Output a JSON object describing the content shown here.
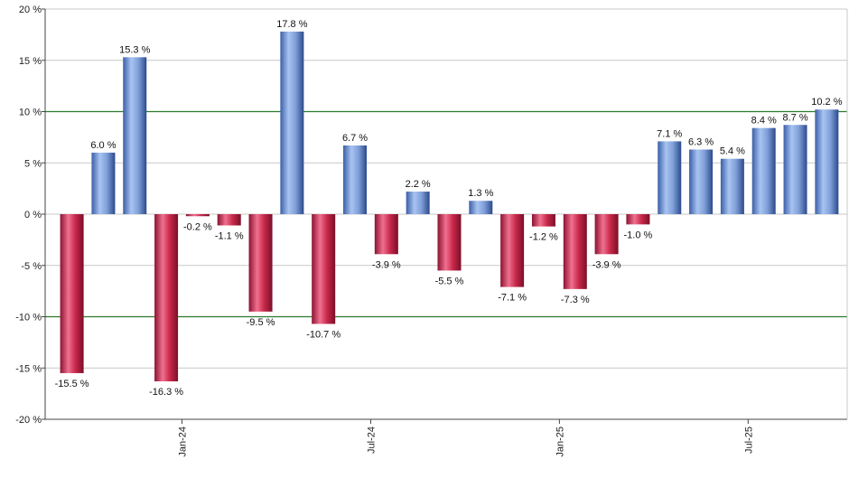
{
  "chart_data": {
    "type": "bar",
    "title": "",
    "xlabel": "",
    "ylabel": "",
    "ylim": [
      -20,
      20
    ],
    "yticks": [
      20,
      15,
      10,
      5,
      0,
      -5,
      -10,
      -15,
      -20
    ],
    "ytick_labels": [
      "20 %",
      "15 %",
      "10 %",
      "5 %",
      "0 %",
      "-5 %",
      "-10 %",
      "-15 %",
      "-20 %"
    ],
    "grid": true,
    "reference_lines": [
      10,
      -10
    ],
    "x_tick_labels": [
      {
        "label": "Jan-24",
        "at_index": 3.5
      },
      {
        "label": "Jul-24",
        "at_index": 9.5
      },
      {
        "label": "Jan-25",
        "at_index": 15.5
      },
      {
        "label": "Jul-25",
        "at_index": 21.5
      }
    ],
    "values": [
      -15.5,
      6.0,
      15.3,
      -16.3,
      -0.2,
      -1.1,
      -9.5,
      17.8,
      -10.7,
      6.7,
      -3.9,
      2.2,
      -5.5,
      1.3,
      -7.1,
      -1.2,
      -7.3,
      -3.9,
      -1.0,
      7.1,
      6.3,
      5.4,
      8.4,
      8.7,
      10.2
    ],
    "value_labels": [
      "-15.5 %",
      "6.0 %",
      "15.3 %",
      "-16.3 %",
      "-0.2 %",
      "-1.1 %",
      "-9.5 %",
      "17.8 %",
      "-10.7 %",
      "6.7 %",
      "-3.9 %",
      "2.2 %",
      "-5.5 %",
      "1.3 %",
      "-7.1 %",
      "-1.2 %",
      "-7.3 %",
      "-3.9 %",
      "-1.0 %",
      "7.1 %",
      "6.3 %",
      "5.4 %",
      "8.4 %",
      "8.7 %",
      "10.2 %"
    ],
    "colors": {
      "positive": "#7f9fd8",
      "negative": "#c8284a",
      "grid": "#c8c8c8",
      "reference_line": "#2a7a2a",
      "axis": "#444444"
    }
  }
}
